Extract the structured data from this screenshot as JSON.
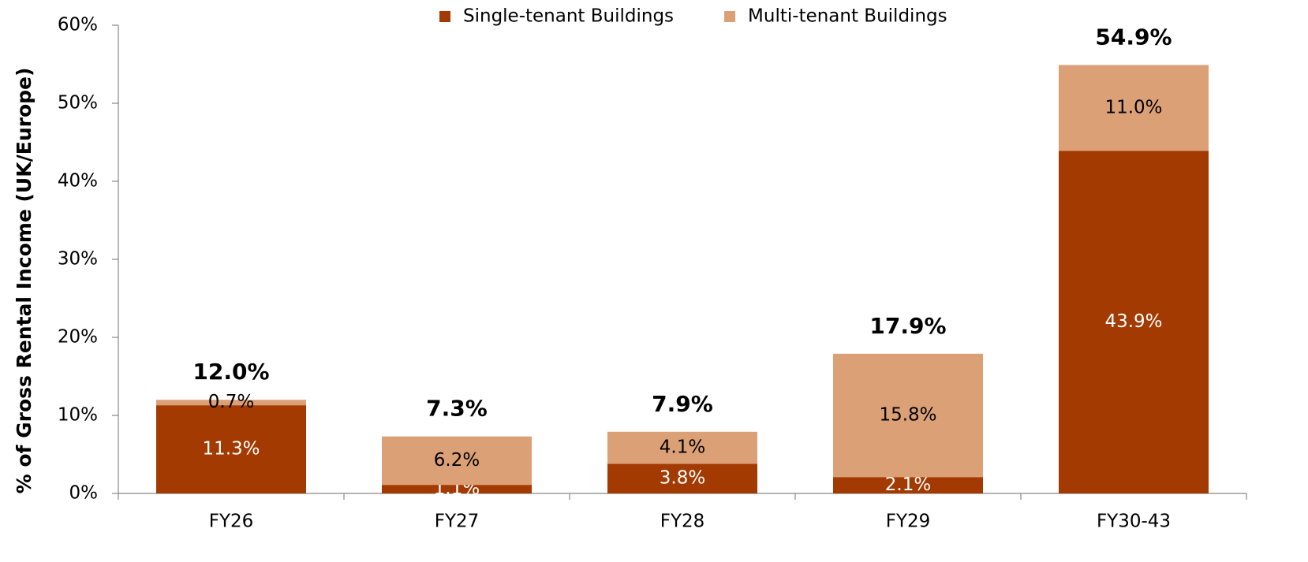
{
  "chart_data": {
    "type": "stacked_bar",
    "y_axis_label": "% of Gross Rental Income (UK/Europe)",
    "categories": [
      "FY26",
      "FY27",
      "FY28",
      "FY29",
      "FY30-43"
    ],
    "series": [
      {
        "name": "Single-tenant Buildings",
        "color": "#a33a02",
        "label_color": "#ffffff",
        "values": [
          11.3,
          1.1,
          3.8,
          2.1,
          43.9
        ],
        "value_labels": [
          "11.3%",
          "1.1%",
          "3.8%",
          "2.1%",
          "43.9%"
        ]
      },
      {
        "name": "Multi-tenant Buildings",
        "color": "#dca077",
        "label_color": "#000000",
        "values": [
          0.7,
          6.2,
          4.1,
          15.8,
          11.0
        ],
        "value_labels": [
          "0.7%",
          "6.2%",
          "4.1%",
          "15.8%",
          "11.0%"
        ]
      }
    ],
    "totals": [
      12.0,
      7.3,
      7.9,
      17.9,
      54.9
    ],
    "total_labels": [
      "12.0%",
      "7.3%",
      "7.9%",
      "17.9%",
      "54.9%"
    ],
    "ylim": [
      0,
      60
    ],
    "yticks": [
      {
        "value": 0,
        "label": "0%"
      },
      {
        "value": 10,
        "label": "10%"
      },
      {
        "value": 20,
        "label": "20%"
      },
      {
        "value": 30,
        "label": "30%"
      },
      {
        "value": 40,
        "label": "40%"
      },
      {
        "value": 50,
        "label": "50%"
      },
      {
        "value": 60,
        "label": "60%"
      }
    ],
    "legend": "top"
  }
}
